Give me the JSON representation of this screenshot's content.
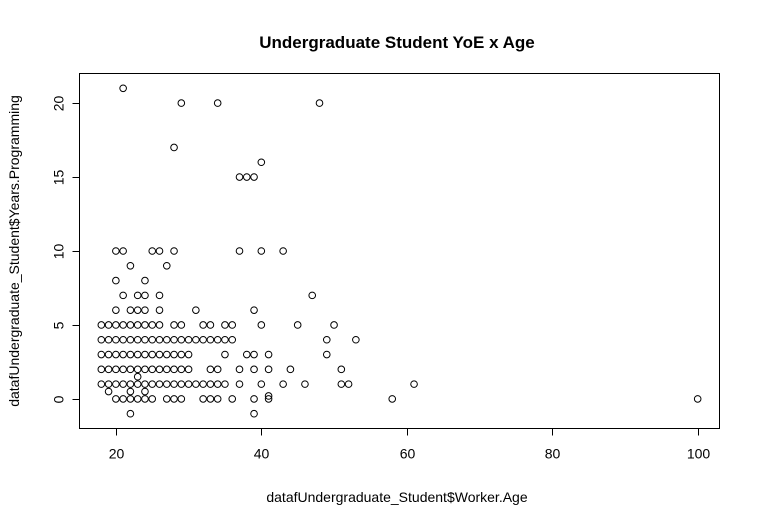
{
  "chart_data": {
    "type": "scatter",
    "title": "Undergraduate Student YoE x Age",
    "xlabel": "datafUndergraduate_Student$Worker.Age",
    "ylabel": "datafUndergraduate_Student$Years.Programming",
    "xlim": [
      15,
      103
    ],
    "ylim": [
      -2,
      22
    ],
    "xticks": [
      20,
      40,
      60,
      80,
      100
    ],
    "yticks": [
      0,
      5,
      10,
      15,
      20
    ],
    "grid": false,
    "legend": "none",
    "marker": "open-circle",
    "points": [
      [
        18,
        1
      ],
      [
        18,
        2
      ],
      [
        18,
        3
      ],
      [
        18,
        4
      ],
      [
        18,
        5
      ],
      [
        19,
        1
      ],
      [
        19,
        2
      ],
      [
        19,
        3
      ],
      [
        19,
        4
      ],
      [
        19,
        5
      ],
      [
        19,
        0.5
      ],
      [
        20,
        0
      ],
      [
        20,
        1
      ],
      [
        20,
        2
      ],
      [
        20,
        3
      ],
      [
        20,
        4
      ],
      [
        20,
        5
      ],
      [
        20,
        6
      ],
      [
        20,
        8
      ],
      [
        20,
        10
      ],
      [
        21,
        1
      ],
      [
        21,
        2
      ],
      [
        21,
        3
      ],
      [
        21,
        4
      ],
      [
        21,
        5
      ],
      [
        21,
        7
      ],
      [
        21,
        10
      ],
      [
        21,
        21
      ],
      [
        21,
        0
      ],
      [
        22,
        -1
      ],
      [
        22,
        0
      ],
      [
        22,
        0.5
      ],
      [
        22,
        1
      ],
      [
        22,
        2
      ],
      [
        22,
        3
      ],
      [
        22,
        4
      ],
      [
        22,
        5
      ],
      [
        22,
        6
      ],
      [
        22,
        9
      ],
      [
        23,
        0
      ],
      [
        23,
        1
      ],
      [
        23,
        1.5
      ],
      [
        23,
        2
      ],
      [
        23,
        3
      ],
      [
        23,
        4
      ],
      [
        23,
        5
      ],
      [
        23,
        6
      ],
      [
        23,
        7
      ],
      [
        24,
        0
      ],
      [
        24,
        0.5
      ],
      [
        24,
        1
      ],
      [
        24,
        2
      ],
      [
        24,
        3
      ],
      [
        24,
        4
      ],
      [
        24,
        5
      ],
      [
        24,
        6
      ],
      [
        24,
        7
      ],
      [
        24,
        8
      ],
      [
        25,
        0
      ],
      [
        25,
        1
      ],
      [
        25,
        2
      ],
      [
        25,
        3
      ],
      [
        25,
        4
      ],
      [
        25,
        5
      ],
      [
        25,
        10
      ],
      [
        26,
        1
      ],
      [
        26,
        2
      ],
      [
        26,
        3
      ],
      [
        26,
        4
      ],
      [
        26,
        5
      ],
      [
        26,
        6
      ],
      [
        26,
        7
      ],
      [
        26,
        10
      ],
      [
        27,
        0
      ],
      [
        27,
        1
      ],
      [
        27,
        2
      ],
      [
        27,
        3
      ],
      [
        27,
        4
      ],
      [
        27,
        9
      ],
      [
        28,
        0
      ],
      [
        28,
        1
      ],
      [
        28,
        2
      ],
      [
        28,
        3
      ],
      [
        28,
        4
      ],
      [
        28,
        5
      ],
      [
        28,
        10
      ],
      [
        28,
        17
      ],
      [
        29,
        0
      ],
      [
        29,
        1
      ],
      [
        29,
        2
      ],
      [
        29,
        3
      ],
      [
        29,
        4
      ],
      [
        29,
        5
      ],
      [
        29,
        20
      ],
      [
        30,
        1
      ],
      [
        30,
        2
      ],
      [
        30,
        3
      ],
      [
        30,
        4
      ],
      [
        31,
        1
      ],
      [
        31,
        4
      ],
      [
        31,
        6
      ],
      [
        32,
        0
      ],
      [
        32,
        1
      ],
      [
        32,
        4
      ],
      [
        32,
        5
      ],
      [
        33,
        0
      ],
      [
        33,
        1
      ],
      [
        33,
        2
      ],
      [
        33,
        4
      ],
      [
        33,
        5
      ],
      [
        34,
        0
      ],
      [
        34,
        1
      ],
      [
        34,
        2
      ],
      [
        34,
        4
      ],
      [
        34,
        20
      ],
      [
        35,
        1
      ],
      [
        35,
        3
      ],
      [
        35,
        4
      ],
      [
        35,
        5
      ],
      [
        36,
        0
      ],
      [
        36,
        4
      ],
      [
        36,
        5
      ],
      [
        37,
        1
      ],
      [
        37,
        2
      ],
      [
        37,
        10
      ],
      [
        37,
        15
      ],
      [
        38,
        3
      ],
      [
        38,
        15
      ],
      [
        39,
        -1
      ],
      [
        39,
        0
      ],
      [
        39,
        2
      ],
      [
        39,
        3
      ],
      [
        39,
        6
      ],
      [
        39,
        15
      ],
      [
        40,
        1
      ],
      [
        40,
        5
      ],
      [
        40,
        10
      ],
      [
        40,
        16
      ],
      [
        41,
        0
      ],
      [
        41,
        0.2
      ],
      [
        41,
        2
      ],
      [
        41,
        3
      ],
      [
        43,
        1
      ],
      [
        43,
        10
      ],
      [
        44,
        2
      ],
      [
        45,
        5
      ],
      [
        46,
        1
      ],
      [
        47,
        7
      ],
      [
        48,
        20
      ],
      [
        49,
        3
      ],
      [
        49,
        4
      ],
      [
        50,
        5
      ],
      [
        51,
        1
      ],
      [
        51,
        2
      ],
      [
        52,
        1
      ],
      [
        53,
        4
      ],
      [
        58,
        0
      ],
      [
        61,
        1
      ],
      [
        100,
        0
      ]
    ]
  }
}
